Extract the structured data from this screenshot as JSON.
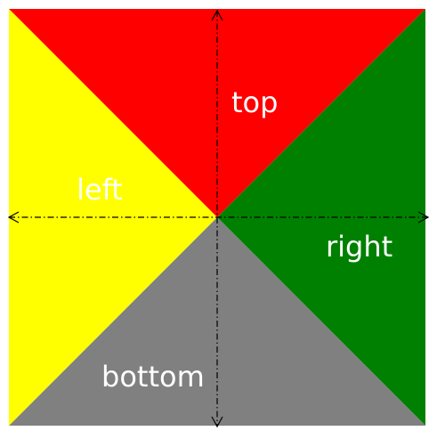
{
  "colors": {
    "top": "#ff0000",
    "right": "#008000",
    "bottom": "#808080",
    "left": "#ffff00",
    "axis": "#000000",
    "label": "#ffffff",
    "background": "#ffffff"
  },
  "labels": {
    "top": "top",
    "right": "right",
    "bottom": "bottom",
    "left": "left"
  },
  "axes": {
    "line_style": "dash-dot",
    "arrowheads": "both-ends"
  }
}
